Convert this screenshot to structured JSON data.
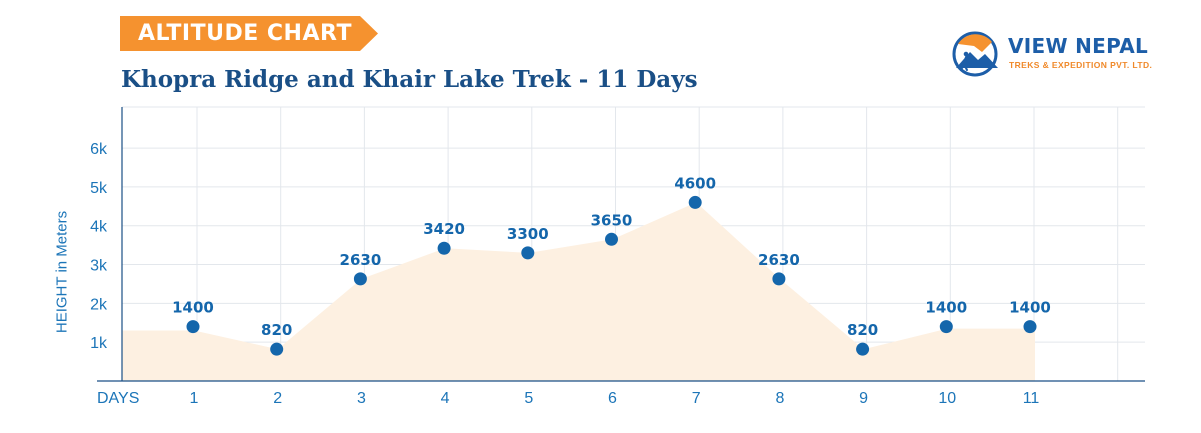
{
  "header": {
    "tag": "ALTITUDE CHART",
    "title": "Khopra Ridge and Khair Lake Trek - 11 Days"
  },
  "brand": {
    "name": "VIEW NEPAL",
    "subtitle": "TREKS & EXPEDITION PVT. LTD.",
    "icon": "mountain-hiker-icon"
  },
  "colors": {
    "accent_orange": "#f5922f",
    "title_blue": "#1a4f86",
    "axis_blue": "#1c75b8",
    "point_blue": "#1466ab",
    "area_fill": "#fdf0e1",
    "grid": "#e3e7ec"
  },
  "chart_data": {
    "type": "area",
    "title": "Khopra Ridge and Khair Lake Trek - 11 Days",
    "xlabel": "DAYS",
    "ylabel": "HEIGHT in Meters",
    "categories": [
      "1",
      "2",
      "3",
      "4",
      "5",
      "6",
      "7",
      "8",
      "9",
      "10",
      "11"
    ],
    "values": [
      1400,
      820,
      2630,
      3420,
      3300,
      3650,
      4600,
      2630,
      820,
      1400,
      1400
    ],
    "area_values": [
      1300,
      820,
      2630,
      3420,
      3300,
      3650,
      4600,
      2630,
      820,
      1350,
      1350
    ],
    "ylim": [
      0,
      7000
    ],
    "yticks": [
      1000,
      2000,
      3000,
      4000,
      5000,
      6000
    ],
    "ytick_labels": [
      "1k",
      "2k",
      "3k",
      "4k",
      "5k",
      "6k"
    ],
    "grid": true,
    "data_labels": true
  }
}
